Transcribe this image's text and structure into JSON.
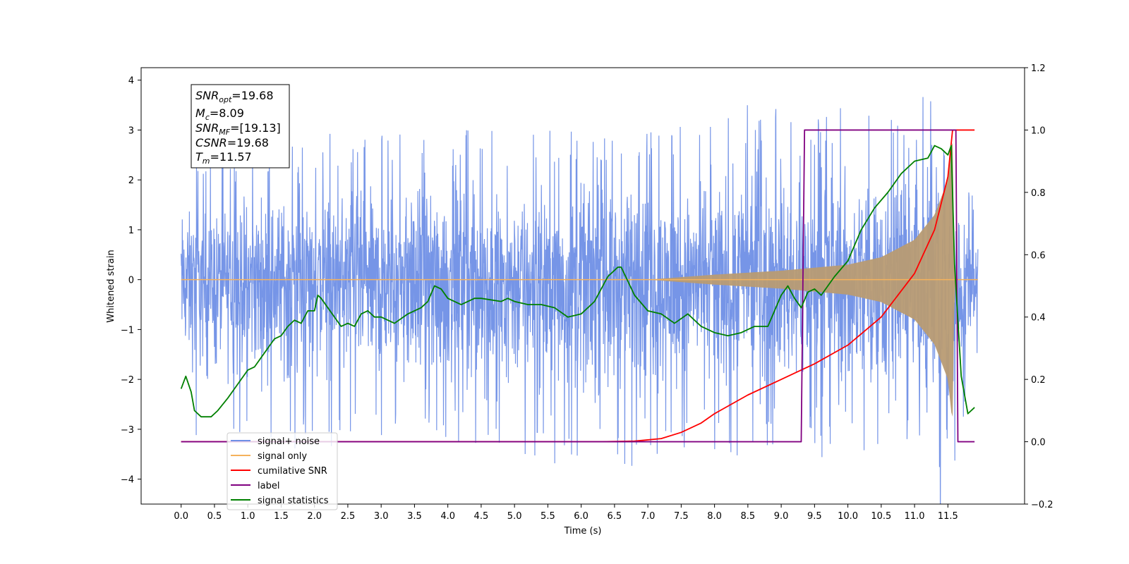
{
  "chart_data": {
    "type": "line",
    "xlabel": "Time (s)",
    "ylabel_left": "Whitened strain",
    "ylabel_right": "",
    "xlim": [
      -0.6,
      12.65
    ],
    "ylim_left": [
      -4.5,
      4.25
    ],
    "ylim_right": [
      -0.2,
      1.2
    ],
    "x_ticks": [
      "0.0",
      "0.5",
      "1.0",
      "1.5",
      "2.0",
      "2.5",
      "3.0",
      "3.5",
      "4.0",
      "4.5",
      "5.0",
      "5.5",
      "6.0",
      "6.5",
      "7.0",
      "7.5",
      "8.0",
      "8.5",
      "9.0",
      "9.5",
      "10.0",
      "10.5",
      "11.0",
      "11.5"
    ],
    "y_ticks_left": [
      "4",
      "3",
      "2",
      "1",
      "0",
      "−1",
      "−2",
      "−3",
      "−4"
    ],
    "y_ticks_right": [
      "1.2",
      "1.0",
      "0.8",
      "0.6",
      "0.4",
      "0.2",
      "0.0",
      "−0.2"
    ],
    "grid": false,
    "legend_position": "lower-left",
    "colors": {
      "signal_noise": "#6f8fe6",
      "signal_only": "#f5b25c",
      "cumulative_snr": "#ff0000",
      "label": "#800080",
      "signal_statistics": "#008000"
    },
    "annotation": {
      "snr_opt": {
        "name": "SNR",
        "sub": "opt",
        "value": "=19.68"
      },
      "mc": {
        "name": "M",
        "sub": "c",
        "value": "=8.09"
      },
      "snr_mf": {
        "name": "SNR",
        "sub": "MF",
        "value": "=[19.13]"
      },
      "csnr": {
        "name": "CSNR",
        "sub": "",
        "value": "=19.68"
      },
      "tm": {
        "name": "T",
        "sub": "m",
        "value": "=11.57"
      }
    },
    "series": [
      {
        "name": "signal+ noise",
        "axis": "left",
        "color": "#6f8fe6",
        "description_points": [
          [
            0.0,
            2.25
          ],
          [
            1.0,
            2.6
          ],
          [
            2.0,
            2.95
          ],
          [
            3.0,
            2.9
          ],
          [
            3.5,
            3.1
          ],
          [
            4.5,
            3.0
          ],
          [
            6.0,
            3.0
          ],
          [
            7.4,
            3.0
          ],
          [
            8.1,
            3.55
          ],
          [
            9.5,
            3.1
          ],
          [
            10.8,
            3.9
          ],
          [
            11.9,
            1.7
          ]
        ],
        "min_points": [
          [
            0.0,
            -3.0
          ],
          [
            0.5,
            -3.3
          ],
          [
            1.0,
            -3.2
          ],
          [
            2.0,
            -3.5
          ],
          [
            4.0,
            -3.45
          ],
          [
            5.5,
            -3.8
          ],
          [
            6.3,
            -3.95
          ],
          [
            7.1,
            -3.6
          ],
          [
            9.2,
            -3.35
          ],
          [
            10.8,
            -3.7
          ],
          [
            11.6,
            -3.7
          ],
          [
            11.9,
            -1.6
          ]
        ]
      },
      {
        "name": "signal only",
        "axis": "left",
        "color": "#f5b25c",
        "envelope": [
          [
            0.0,
            0.0
          ],
          [
            7.0,
            0.0
          ],
          [
            8.0,
            0.1
          ],
          [
            9.0,
            0.18
          ],
          [
            10.0,
            0.3
          ],
          [
            10.5,
            0.45
          ],
          [
            11.0,
            0.8
          ],
          [
            11.3,
            1.3
          ],
          [
            11.5,
            2.0
          ],
          [
            11.57,
            2.9
          ],
          [
            11.6,
            0.0
          ],
          [
            11.9,
            0.0
          ]
        ]
      },
      {
        "name": "cumilative SNR",
        "axis": "right",
        "color": "#ff0000",
        "x": [
          0.0,
          6.3,
          6.8,
          7.2,
          7.5,
          7.8,
          8.0,
          8.5,
          9.0,
          9.5,
          10.0,
          10.5,
          11.0,
          11.3,
          11.5,
          11.57,
          11.6,
          11.9
        ],
        "values": [
          0.0,
          0.0,
          0.002,
          0.01,
          0.03,
          0.06,
          0.09,
          0.15,
          0.2,
          0.25,
          0.31,
          0.4,
          0.54,
          0.68,
          0.85,
          1.0,
          1.0,
          1.0
        ]
      },
      {
        "name": "label",
        "axis": "right",
        "color": "#800080",
        "x": [
          0.0,
          9.3,
          9.35,
          11.62,
          11.65,
          11.9
        ],
        "values": [
          0.0,
          0.0,
          1.0,
          1.0,
          0.0,
          0.0
        ]
      },
      {
        "name": "signal statistics",
        "axis": "right",
        "color": "#008000",
        "x": [
          0.0,
          0.07,
          0.15,
          0.2,
          0.3,
          0.45,
          0.55,
          0.7,
          0.9,
          1.0,
          1.1,
          1.2,
          1.3,
          1.4,
          1.5,
          1.6,
          1.7,
          1.8,
          1.9,
          2.0,
          2.05,
          2.1,
          2.2,
          2.3,
          2.4,
          2.5,
          2.6,
          2.7,
          2.8,
          2.9,
          3.0,
          3.2,
          3.4,
          3.6,
          3.7,
          3.8,
          3.9,
          4.0,
          4.2,
          4.4,
          4.5,
          4.8,
          4.9,
          5.0,
          5.2,
          5.4,
          5.6,
          5.8,
          6.0,
          6.2,
          6.4,
          6.55,
          6.6,
          6.8,
          7.0,
          7.2,
          7.4,
          7.6,
          7.8,
          8.0,
          8.2,
          8.4,
          8.6,
          8.8,
          9.0,
          9.1,
          9.2,
          9.3,
          9.4,
          9.5,
          9.6,
          9.7,
          9.8,
          10.0,
          10.2,
          10.4,
          10.6,
          10.8,
          11.0,
          11.2,
          11.3,
          11.4,
          11.5,
          11.55,
          11.6,
          11.7,
          11.8,
          11.9
        ],
        "values": [
          0.17,
          0.21,
          0.16,
          0.1,
          0.08,
          0.08,
          0.1,
          0.14,
          0.2,
          0.23,
          0.24,
          0.27,
          0.3,
          0.33,
          0.34,
          0.37,
          0.39,
          0.38,
          0.42,
          0.42,
          0.47,
          0.46,
          0.43,
          0.4,
          0.37,
          0.38,
          0.37,
          0.41,
          0.42,
          0.4,
          0.4,
          0.38,
          0.41,
          0.43,
          0.45,
          0.5,
          0.49,
          0.46,
          0.44,
          0.46,
          0.46,
          0.45,
          0.46,
          0.45,
          0.44,
          0.44,
          0.43,
          0.4,
          0.41,
          0.45,
          0.53,
          0.56,
          0.56,
          0.47,
          0.42,
          0.41,
          0.38,
          0.41,
          0.37,
          0.35,
          0.34,
          0.35,
          0.37,
          0.37,
          0.47,
          0.5,
          0.46,
          0.43,
          0.48,
          0.49,
          0.47,
          0.5,
          0.53,
          0.58,
          0.68,
          0.75,
          0.8,
          0.86,
          0.9,
          0.91,
          0.95,
          0.94,
          0.92,
          0.95,
          0.57,
          0.21,
          0.09,
          0.11
        ]
      }
    ]
  }
}
